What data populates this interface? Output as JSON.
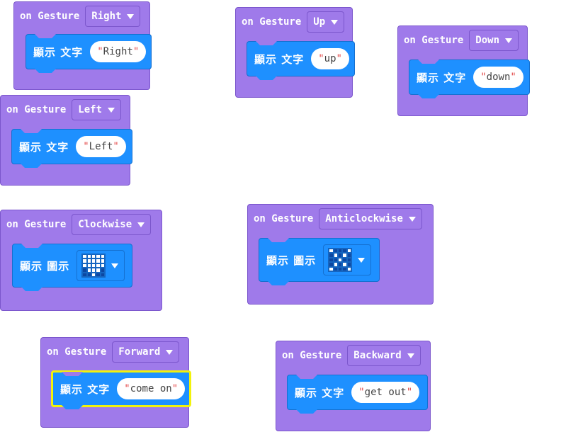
{
  "blocks": [
    {
      "id": "right",
      "label": "on Gesture",
      "gesture": "Right",
      "action": "顯示 文字",
      "text": "Right"
    },
    {
      "id": "up",
      "label": "on Gesture",
      "gesture": "Up",
      "action": "顯示 文字",
      "text": "up"
    },
    {
      "id": "down",
      "label": "on Gesture",
      "gesture": "Down",
      "action": "顯示 文字",
      "text": "down"
    },
    {
      "id": "left",
      "label": "on Gesture",
      "gesture": "Left",
      "action": "顯示 文字",
      "text": "Left"
    },
    {
      "id": "clockwise",
      "label": "on Gesture",
      "gesture": "Clockwise",
      "action": "顯示 圖示",
      "icon": [
        [
          1,
          1,
          1,
          1,
          1
        ],
        [
          1,
          1,
          1,
          1,
          1
        ],
        [
          1,
          1,
          1,
          1,
          1
        ],
        [
          0,
          1,
          1,
          1,
          0
        ],
        [
          0,
          0,
          1,
          0,
          0
        ]
      ]
    },
    {
      "id": "anticlockwise",
      "label": "on Gesture",
      "gesture": "Anticlockwise",
      "action": "顯示 圖示",
      "icon": [
        [
          1,
          0,
          0,
          0,
          1
        ],
        [
          0,
          1,
          0,
          1,
          0
        ],
        [
          0,
          0,
          1,
          0,
          0
        ],
        [
          0,
          1,
          0,
          1,
          0
        ],
        [
          1,
          0,
          0,
          0,
          1
        ]
      ]
    },
    {
      "id": "forward",
      "label": "on Gesture",
      "gesture": "Forward",
      "action": "顯示 文字",
      "text": "come on",
      "selected": true
    },
    {
      "id": "backward",
      "label": "on Gesture",
      "gesture": "Backward",
      "action": "顯示 文字",
      "text": "get out"
    }
  ],
  "quote": "\""
}
